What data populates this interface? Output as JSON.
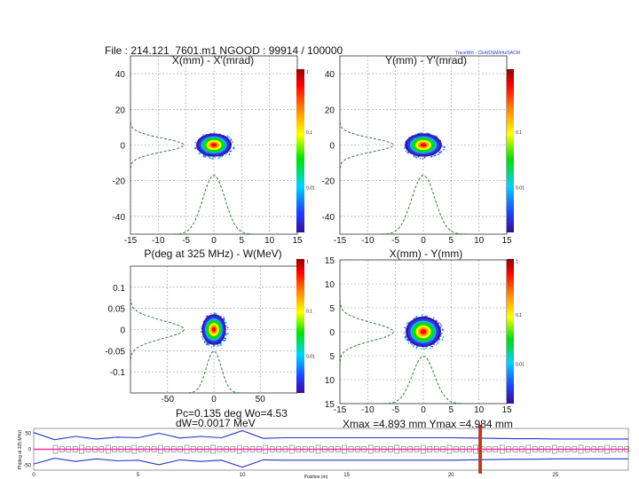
{
  "header": {
    "file_line": "File : 214.121_7601.m1 NGOOD : 99914 / 100000",
    "brand": "TraceWin - CEA/DSM/Irfu/SACM"
  },
  "colors": {
    "ellipse": "#1f8f3a",
    "profile": "#2e7d32",
    "grid": "#9a9a9a",
    "envelope": "#2233cc",
    "centerline": "#ff2aa6",
    "marker": "#c0392b",
    "elements": "#555555"
  },
  "chart_data": [
    {
      "type": "scatter",
      "id": "xxp",
      "title": "X(mm) - X'(mrad)",
      "xlim": [
        -15,
        15
      ],
      "ylim": [
        -50,
        50
      ],
      "xticks": [
        "-15",
        "-10",
        "-5",
        "0",
        "5",
        "10",
        "15"
      ],
      "yticks": [
        "40",
        "20",
        "0",
        "-20",
        "-40"
      ],
      "colorbar_labels": [
        "1",
        "0.1",
        "0.01"
      ],
      "beam": {
        "cx": 0,
        "cy": 0,
        "sx": 2.2,
        "sy": 4.5
      },
      "profile_peak_x": 0,
      "profile_peak_y": 0
    },
    {
      "type": "scatter",
      "id": "yyp",
      "title": "Y(mm) - Y'(mrad)",
      "xlim": [
        -15,
        15
      ],
      "ylim": [
        -50,
        50
      ],
      "xticks": [
        "-15",
        "-10",
        "-5",
        "0",
        "5",
        "10",
        "15"
      ],
      "yticks": [
        "40",
        "20",
        "0",
        "-20",
        "-40"
      ],
      "colorbar_labels": [
        "0.1",
        "0.01"
      ],
      "beam": {
        "cx": 0,
        "cy": 0,
        "sx": 2.3,
        "sy": 4.5
      },
      "profile_peak_x": 0,
      "profile_peak_y": 0
    },
    {
      "type": "scatter",
      "id": "phw",
      "title": "P(deg at 325 MHz) - W(MeV)",
      "xlim": [
        -90,
        90
      ],
      "ylim": [
        -0.15,
        0.15
      ],
      "xticks": [
        "-50",
        "0",
        "50"
      ],
      "yticks": [
        "0.1",
        "0.05",
        "0",
        "-0.05",
        "-0.1"
      ],
      "colorbar_labels": [
        "1",
        "0.1",
        "0.01"
      ],
      "beam": {
        "cx": 0,
        "cy": 0,
        "sx": 9,
        "sy": 0.025
      },
      "profile_peak_x": 0,
      "profile_peak_y": 0,
      "footer": [
        "Pc=0.135 deg Wo=4.53",
        "dW=0.0017 MeV"
      ]
    },
    {
      "type": "scatter",
      "id": "xy",
      "title": "X(mm) - Y(mm)",
      "xlim": [
        -15,
        15
      ],
      "ylim": [
        -15,
        15
      ],
      "xticks": [
        "-15",
        "-10",
        "-5",
        "0",
        "5",
        "10",
        "15"
      ],
      "yticks": [
        "15",
        "10",
        "5",
        "0",
        "5",
        "10",
        "15"
      ],
      "colorbar_labels": [
        "1",
        "0.1",
        "0.01"
      ],
      "beam": {
        "cx": 0,
        "cy": 0,
        "sx": 2.2,
        "sy": 2.2
      },
      "profile_peak_x": 0,
      "profile_peak_y": 0,
      "footer": [
        "Xmax =4.893 mm Ymax =4.984 mm"
      ]
    },
    {
      "type": "line",
      "id": "envelope",
      "ylabel": "Ph(deg at 325 MHz)",
      "xlabel": "Position (m)",
      "xlim": [
        0,
        28.5
      ],
      "ylim": [
        -65,
        65
      ],
      "xticks": [
        "0",
        "5",
        "10",
        "15",
        "20",
        "25"
      ],
      "yticks": [
        "50",
        "0",
        "-50"
      ],
      "marker_x": 21.4,
      "x": [
        0,
        1,
        2,
        3,
        4,
        5,
        6,
        7,
        8,
        9,
        10,
        11,
        12,
        13,
        14,
        15,
        16,
        17,
        18,
        19,
        20,
        21,
        22,
        23,
        24,
        25,
        26,
        27,
        28.5
      ],
      "upper": [
        52,
        30,
        40,
        32,
        38,
        36,
        50,
        35,
        40,
        36,
        58,
        34,
        36,
        36,
        36,
        36,
        36,
        36,
        36,
        36,
        36,
        35,
        34,
        33,
        33,
        32,
        32,
        32,
        32
      ],
      "lower": [
        -46,
        -28,
        -38,
        -30,
        -36,
        -34,
        -48,
        -33,
        -38,
        -34,
        -56,
        -33,
        -34,
        -34,
        -34,
        -34,
        -34,
        -34,
        -34,
        -34,
        -34,
        -33,
        -32,
        -31,
        -31,
        -30,
        -30,
        -30,
        -30
      ]
    }
  ]
}
